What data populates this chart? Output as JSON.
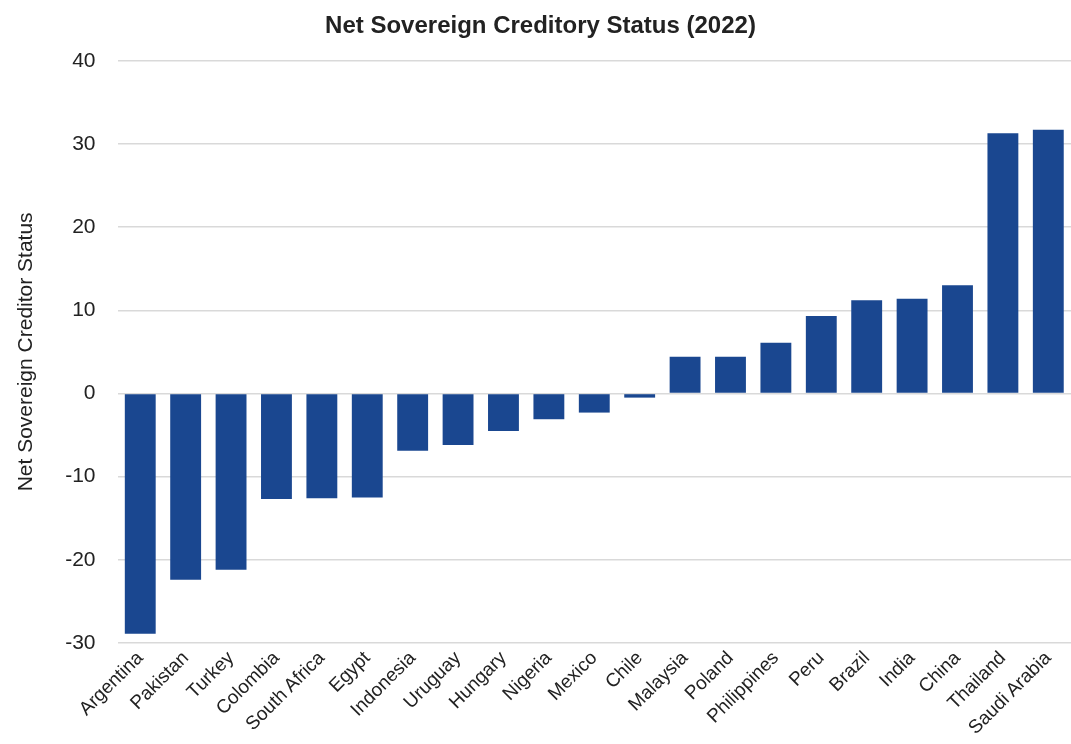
{
  "chart_data": {
    "type": "bar",
    "title": "Net Sovereign Creditory Status (2022)",
    "ylabel": "Net Sovereign Creditor Status",
    "categories": [
      "Argentina",
      "Pakistan",
      "Turkey",
      "Colombia",
      "South Africa",
      "Egypt",
      "Indonesia",
      "Uruguay",
      "Hungary",
      "Nigeria",
      "Mexico",
      "Chile",
      "Malaysia",
      "Poland",
      "Philippines",
      "Peru",
      "Brazil",
      "India",
      "China",
      "Thailand",
      "Saudi Arabia"
    ],
    "values": [
      -28.9,
      -22.4,
      -21.2,
      -12.7,
      -12.6,
      -12.5,
      -6.9,
      -6.2,
      -4.5,
      -3.1,
      -2.3,
      -0.5,
      4.4,
      4.4,
      6.1,
      9.3,
      11.2,
      11.4,
      13.0,
      31.3,
      31.7
    ],
    "color": "#1a4790",
    "ylim": [
      -30,
      40
    ],
    "yticks": [
      -30,
      -20,
      -10,
      0,
      10,
      20,
      30,
      40
    ],
    "grid": "y",
    "legend": false
  }
}
